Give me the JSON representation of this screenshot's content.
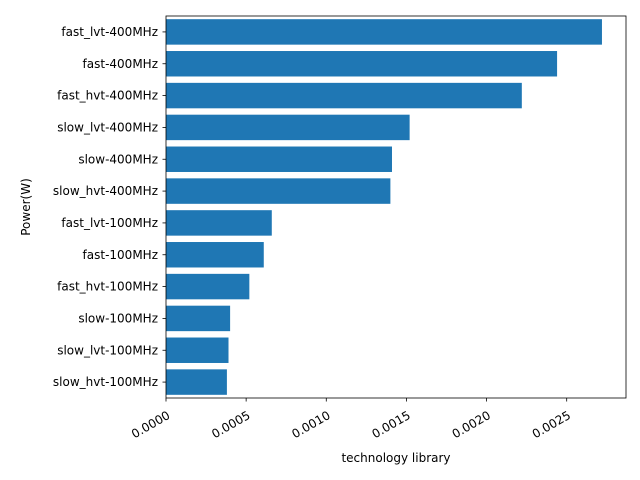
{
  "chart_data": {
    "type": "bar",
    "orientation": "horizontal",
    "xlabel": "technology library",
    "ylabel": "Power(W)",
    "xlim": [
      0,
      0.00287
    ],
    "xticks": [
      "0.0000",
      "0.0005",
      "0.0010",
      "0.0015",
      "0.0020",
      "0.0025"
    ],
    "xtick_values": [
      0,
      0.0005,
      0.001,
      0.0015,
      0.002,
      0.0025
    ],
    "xtick_rotation": 30,
    "grid": false,
    "bar_color": "#1f77b4",
    "categories": [
      "fast_lvt-400MHz",
      "fast-400MHz",
      "fast_hvt-400MHz",
      "slow_lvt-400MHz",
      "slow-400MHz",
      "slow_hvt-400MHz",
      "fast_lvt-100MHz",
      "fast-100MHz",
      "fast_hvt-100MHz",
      "slow-100MHz",
      "slow_lvt-100MHz",
      "slow_hvt-100MHz"
    ],
    "values": [
      0.00272,
      0.00244,
      0.00222,
      0.00152,
      0.00141,
      0.0014,
      0.00066,
      0.00061,
      0.00052,
      0.0004,
      0.00039,
      0.00038
    ]
  }
}
